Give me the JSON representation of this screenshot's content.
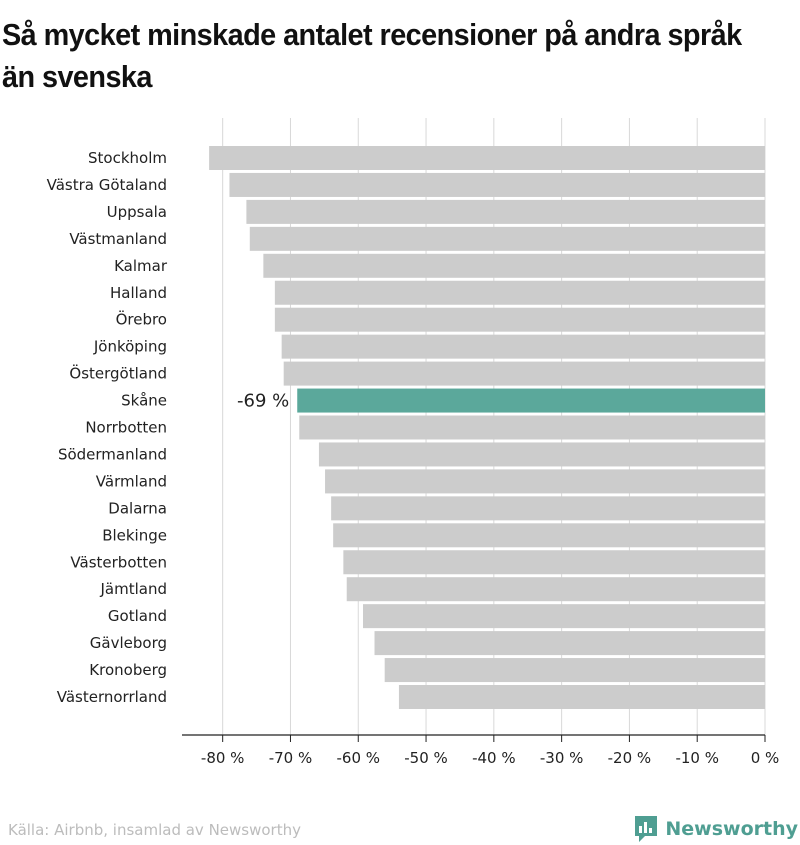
{
  "chart_data": {
    "type": "bar",
    "orientation": "horizontal",
    "title": "Så mycket minskade antalet recensioner på andra språk än svenska",
    "categories": [
      "Stockholm",
      "Västra Götaland",
      "Uppsala",
      "Västmanland",
      "Kalmar",
      "Halland",
      "Örebro",
      "Jönköping",
      "Östergötland",
      "Skåne",
      "Norrbotten",
      "Södermanland",
      "Värmland",
      "Dalarna",
      "Blekinge",
      "Västerbotten",
      "Jämtland",
      "Gotland",
      "Gävleborg",
      "Kronoberg",
      "Västernorrland"
    ],
    "values": [
      -82,
      -79,
      -76.5,
      -76,
      -74,
      -72.3,
      -72.3,
      -71.3,
      -71,
      -69,
      -68.7,
      -65.8,
      -64.9,
      -64,
      -63.7,
      -62.2,
      -61.7,
      -59.3,
      -57.6,
      -56.1,
      -54
    ],
    "highlight": {
      "category": "Skåne",
      "label": "-69 %"
    },
    "xlim": [
      -86,
      0
    ],
    "xticks": [
      -80,
      -70,
      -60,
      -50,
      -40,
      -30,
      -20,
      -10,
      0
    ],
    "tick_labels": [
      "-80 %",
      "-70 %",
      "-60 %",
      "-50 %",
      "-40 %",
      "-30 %",
      "-20 %",
      "-10 %",
      "0 %"
    ],
    "grid": true,
    "colors": {
      "bar": "#cccccc",
      "highlight": "#5ba89b",
      "grid": "#d8d8d8",
      "axis": "#222222"
    }
  },
  "footer": {
    "source": "Källa: Airbnb, insamlad av Newsworthy",
    "brand": "Newsworthy",
    "brand_icon": "bar-chart-icon"
  }
}
